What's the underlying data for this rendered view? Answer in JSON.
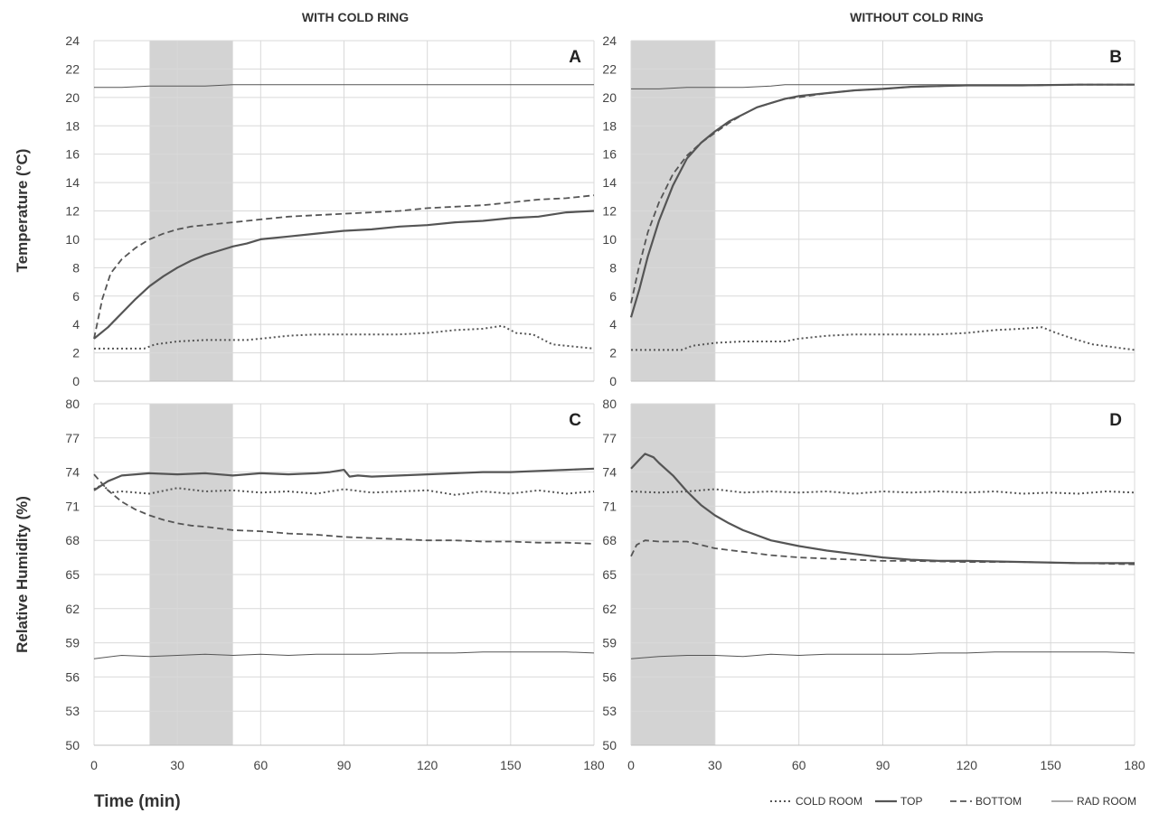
{
  "figure": {
    "col_titles": [
      "WITH COLD RING",
      "WITHOUT COLD RING"
    ],
    "xlabel": "Time (min)",
    "legend": [
      {
        "label": "COLD ROOM",
        "style": "dotted"
      },
      {
        "label": "TOP",
        "style": "solid-thick"
      },
      {
        "label": "BOTTOM",
        "style": "dashed"
      },
      {
        "label": "RAD ROOM",
        "style": "solid-thin"
      }
    ],
    "colors": {
      "line": "#555555",
      "shade": "#d3d3d3",
      "grid": "#d9d9d9",
      "axis": "#bfbfbf"
    }
  },
  "chart_data": [
    {
      "type": "line",
      "panel": "A",
      "ylabel": "Temperature (°C)",
      "xlim": [
        0,
        180
      ],
      "ylim": [
        0,
        24
      ],
      "xticks": [
        0,
        30,
        60,
        90,
        120,
        150,
        180
      ],
      "yticks": [
        0,
        2,
        4,
        6,
        8,
        10,
        12,
        14,
        16,
        18,
        20,
        22,
        24
      ],
      "shaded_interval": [
        20,
        50
      ],
      "series": [
        {
          "name": "COLD ROOM",
          "style": "dotted",
          "x": [
            0,
            18,
            22,
            30,
            40,
            55,
            60,
            70,
            80,
            90,
            100,
            110,
            120,
            130,
            140,
            147,
            152,
            158,
            165,
            180
          ],
          "y": [
            2.3,
            2.3,
            2.6,
            2.8,
            2.9,
            2.9,
            3.0,
            3.2,
            3.3,
            3.3,
            3.3,
            3.3,
            3.4,
            3.6,
            3.7,
            3.9,
            3.4,
            3.3,
            2.6,
            2.3
          ]
        },
        {
          "name": "TOP",
          "style": "solid-thick",
          "x": [
            0,
            5,
            10,
            15,
            20,
            25,
            30,
            35,
            40,
            45,
            50,
            55,
            60,
            70,
            80,
            90,
            100,
            110,
            120,
            130,
            140,
            150,
            160,
            170,
            180
          ],
          "y": [
            3.0,
            3.8,
            4.8,
            5.8,
            6.7,
            7.4,
            8.0,
            8.5,
            8.9,
            9.2,
            9.5,
            9.7,
            10.0,
            10.2,
            10.4,
            10.6,
            10.7,
            10.9,
            11.0,
            11.2,
            11.3,
            11.5,
            11.6,
            11.9,
            12.0
          ]
        },
        {
          "name": "BOTTOM",
          "style": "dashed",
          "x": [
            0,
            3,
            6,
            10,
            15,
            20,
            25,
            30,
            35,
            40,
            45,
            50,
            55,
            60,
            70,
            80,
            90,
            100,
            110,
            120,
            130,
            140,
            150,
            160,
            170,
            180
          ],
          "y": [
            3.0,
            5.8,
            7.6,
            8.6,
            9.4,
            10.0,
            10.4,
            10.7,
            10.9,
            11.0,
            11.1,
            11.2,
            11.3,
            11.4,
            11.6,
            11.7,
            11.8,
            11.9,
            12.0,
            12.2,
            12.3,
            12.4,
            12.6,
            12.8,
            12.9,
            13.1
          ]
        },
        {
          "name": "RAD ROOM",
          "style": "solid-thin",
          "x": [
            0,
            10,
            20,
            30,
            40,
            50,
            55,
            60,
            90,
            120,
            150,
            180
          ],
          "y": [
            20.7,
            20.7,
            20.8,
            20.8,
            20.8,
            20.9,
            20.9,
            20.9,
            20.9,
            20.9,
            20.9,
            20.9
          ]
        }
      ]
    },
    {
      "type": "line",
      "panel": "B",
      "ylabel": "",
      "xlim": [
        0,
        180
      ],
      "ylim": [
        0,
        24
      ],
      "xticks": [
        0,
        30,
        60,
        90,
        120,
        150,
        180
      ],
      "yticks": [
        0,
        2,
        4,
        6,
        8,
        10,
        12,
        14,
        16,
        18,
        20,
        22,
        24
      ],
      "shaded_interval": [
        0,
        30
      ],
      "series": [
        {
          "name": "COLD ROOM",
          "style": "dotted",
          "x": [
            0,
            18,
            22,
            30,
            40,
            55,
            60,
            70,
            80,
            90,
            100,
            110,
            120,
            130,
            140,
            147,
            152,
            158,
            165,
            180
          ],
          "y": [
            2.2,
            2.2,
            2.5,
            2.7,
            2.8,
            2.8,
            3.0,
            3.2,
            3.3,
            3.3,
            3.3,
            3.3,
            3.4,
            3.6,
            3.7,
            3.8,
            3.4,
            3.0,
            2.6,
            2.2
          ]
        },
        {
          "name": "TOP",
          "style": "solid-thick",
          "x": [
            0,
            3,
            6,
            10,
            15,
            20,
            25,
            30,
            35,
            40,
            45,
            50,
            55,
            60,
            70,
            80,
            90,
            100,
            110,
            120,
            140,
            160,
            180
          ],
          "y": [
            4.5,
            6.5,
            8.8,
            11.3,
            13.8,
            15.7,
            16.8,
            17.6,
            18.3,
            18.8,
            19.3,
            19.6,
            19.9,
            20.1,
            20.3,
            20.5,
            20.6,
            20.75,
            20.8,
            20.85,
            20.85,
            20.9,
            20.9
          ]
        },
        {
          "name": "BOTTOM",
          "style": "dashed",
          "x": [
            0,
            3,
            6,
            10,
            15,
            20,
            25,
            30,
            35,
            40,
            45,
            50,
            55,
            60,
            70,
            80,
            90,
            100,
            110,
            120,
            140,
            160,
            180
          ],
          "y": [
            5.5,
            8.2,
            10.5,
            12.6,
            14.6,
            15.9,
            16.8,
            17.5,
            18.2,
            18.8,
            19.3,
            19.6,
            19.9,
            20.0,
            20.3,
            20.5,
            20.6,
            20.75,
            20.8,
            20.85,
            20.85,
            20.9,
            20.9
          ]
        },
        {
          "name": "RAD ROOM",
          "style": "solid-thin",
          "x": [
            0,
            10,
            20,
            30,
            40,
            50,
            55,
            60,
            90,
            120,
            150,
            180
          ],
          "y": [
            20.6,
            20.6,
            20.7,
            20.7,
            20.7,
            20.8,
            20.9,
            20.9,
            20.9,
            20.9,
            20.9,
            20.9
          ]
        }
      ]
    },
    {
      "type": "line",
      "panel": "C",
      "ylabel": "Relative Humidity (%)",
      "xlim": [
        0,
        180
      ],
      "ylim": [
        50,
        80
      ],
      "xticks": [
        0,
        30,
        60,
        90,
        120,
        150,
        180
      ],
      "yticks": [
        50,
        53,
        56,
        59,
        62,
        65,
        68,
        71,
        74,
        77,
        80
      ],
      "shaded_interval": [
        20,
        50
      ],
      "series": [
        {
          "name": "COLD ROOM",
          "style": "dotted",
          "x": [
            0,
            3,
            6,
            10,
            20,
            30,
            40,
            50,
            60,
            70,
            80,
            90,
            100,
            110,
            120,
            130,
            140,
            150,
            160,
            170,
            180
          ],
          "y": [
            72.5,
            72.9,
            72.2,
            72.3,
            72.1,
            72.6,
            72.3,
            72.4,
            72.2,
            72.3,
            72.1,
            72.5,
            72.2,
            72.3,
            72.4,
            72.0,
            72.3,
            72.1,
            72.4,
            72.1,
            72.3
          ]
        },
        {
          "name": "TOP",
          "style": "solid-thick",
          "x": [
            0,
            5,
            10,
            15,
            20,
            30,
            40,
            50,
            60,
            70,
            80,
            85,
            90,
            92,
            95,
            100,
            110,
            120,
            130,
            140,
            150,
            160,
            170,
            180
          ],
          "y": [
            72.4,
            73.2,
            73.7,
            73.8,
            73.9,
            73.8,
            73.9,
            73.7,
            73.9,
            73.8,
            73.9,
            74.0,
            74.2,
            73.6,
            73.7,
            73.6,
            73.7,
            73.8,
            73.9,
            74.0,
            74.0,
            74.1,
            74.2,
            74.3
          ]
        },
        {
          "name": "BOTTOM",
          "style": "dashed",
          "x": [
            0,
            5,
            10,
            15,
            20,
            25,
            30,
            35,
            40,
            50,
            60,
            70,
            80,
            90,
            100,
            110,
            120,
            130,
            140,
            150,
            160,
            170,
            180
          ],
          "y": [
            73.8,
            72.4,
            71.4,
            70.7,
            70.2,
            69.8,
            69.5,
            69.3,
            69.2,
            68.9,
            68.8,
            68.6,
            68.5,
            68.3,
            68.2,
            68.1,
            68.0,
            68.0,
            67.9,
            67.9,
            67.8,
            67.8,
            67.7
          ]
        },
        {
          "name": "RAD ROOM",
          "style": "solid-thin",
          "x": [
            0,
            10,
            20,
            30,
            40,
            50,
            60,
            70,
            80,
            90,
            100,
            110,
            120,
            130,
            140,
            150,
            160,
            170,
            180
          ],
          "y": [
            57.6,
            57.9,
            57.8,
            57.9,
            58.0,
            57.9,
            58.0,
            57.9,
            58.0,
            58.0,
            58.0,
            58.1,
            58.1,
            58.1,
            58.2,
            58.2,
            58.2,
            58.2,
            58.1
          ]
        }
      ]
    },
    {
      "type": "line",
      "panel": "D",
      "ylabel": "",
      "xlim": [
        0,
        180
      ],
      "ylim": [
        50,
        80
      ],
      "xticks": [
        0,
        30,
        60,
        90,
        120,
        150,
        180
      ],
      "yticks": [
        50,
        53,
        56,
        59,
        62,
        65,
        68,
        71,
        74,
        77,
        80
      ],
      "shaded_interval": [
        0,
        30
      ],
      "series": [
        {
          "name": "COLD ROOM",
          "style": "dotted",
          "x": [
            0,
            10,
            20,
            30,
            40,
            50,
            60,
            70,
            80,
            90,
            100,
            110,
            120,
            130,
            140,
            150,
            160,
            170,
            180
          ],
          "y": [
            72.3,
            72.2,
            72.3,
            72.5,
            72.2,
            72.3,
            72.2,
            72.3,
            72.1,
            72.3,
            72.2,
            72.3,
            72.2,
            72.3,
            72.1,
            72.2,
            72.1,
            72.3,
            72.2
          ]
        },
        {
          "name": "TOP",
          "style": "solid-thick",
          "x": [
            0,
            3,
            5,
            8,
            10,
            15,
            20,
            25,
            30,
            35,
            40,
            50,
            60,
            70,
            80,
            90,
            100,
            110,
            120,
            140,
            160,
            180
          ],
          "y": [
            74.3,
            75.1,
            75.6,
            75.3,
            74.8,
            73.7,
            72.3,
            71.1,
            70.2,
            69.5,
            68.9,
            68.0,
            67.5,
            67.1,
            66.8,
            66.5,
            66.3,
            66.2,
            66.2,
            66.1,
            66.0,
            66.0
          ]
        },
        {
          "name": "BOTTOM",
          "style": "dashed",
          "x": [
            0,
            2,
            5,
            10,
            15,
            20,
            25,
            30,
            40,
            50,
            60,
            70,
            80,
            90,
            100,
            120,
            140,
            160,
            180
          ],
          "y": [
            66.6,
            67.6,
            68.0,
            67.9,
            67.9,
            67.9,
            67.6,
            67.3,
            67.0,
            66.7,
            66.5,
            66.4,
            66.3,
            66.2,
            66.2,
            66.1,
            66.1,
            66.0,
            65.9
          ]
        },
        {
          "name": "RAD ROOM",
          "style": "solid-thin",
          "x": [
            0,
            10,
            20,
            30,
            40,
            50,
            60,
            70,
            80,
            90,
            100,
            110,
            120,
            130,
            140,
            150,
            160,
            170,
            180
          ],
          "y": [
            57.6,
            57.8,
            57.9,
            57.9,
            57.8,
            58.0,
            57.9,
            58.0,
            58.0,
            58.0,
            58.0,
            58.1,
            58.1,
            58.2,
            58.2,
            58.2,
            58.2,
            58.2,
            58.1
          ]
        }
      ]
    }
  ]
}
